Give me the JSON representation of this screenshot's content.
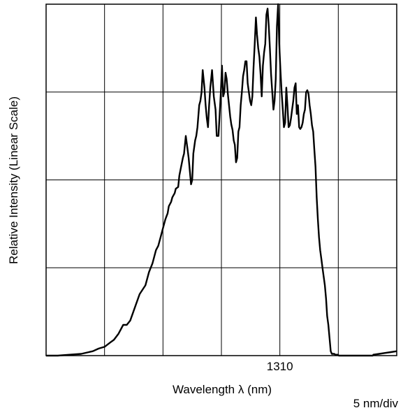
{
  "chart_data": {
    "type": "line",
    "xlabel": "Wavelength λ (nm)",
    "ylabel": "Relative Intensity (Linear Scale)",
    "x_tick_labels": [
      {
        "x": 1310,
        "label": "1310"
      }
    ],
    "scale_annotation": "5 nm/div",
    "x_unit": "nm",
    "xlim": [
      1290,
      1320
    ],
    "ylim": [
      0,
      4
    ],
    "grid": true,
    "x_divisions": 6,
    "y_divisions": 4,
    "series": [
      {
        "color": "#000000",
        "x": [
          1290.0,
          1291.0,
          1292.0,
          1293.0,
          1294.0,
          1294.5,
          1295.0,
          1295.5,
          1295.8,
          1296.2,
          1296.6,
          1296.9,
          1297.2,
          1297.6,
          1298.0,
          1298.5,
          1298.8,
          1299.1,
          1299.4,
          1299.6,
          1299.8,
          1300.0,
          1300.1,
          1300.2,
          1300.4,
          1300.5,
          1300.7,
          1300.8,
          1301.0,
          1301.1,
          1301.3,
          1301.4,
          1301.55,
          1301.7,
          1301.8,
          1301.95,
          1302.1,
          1302.2,
          1302.3,
          1302.4,
          1302.5,
          1302.6,
          1302.75,
          1302.85,
          1302.95,
          1303.1,
          1303.2,
          1303.3,
          1303.4,
          1303.55,
          1303.65,
          1303.75,
          1303.85,
          1303.95,
          1304.05,
          1304.2,
          1304.35,
          1304.5,
          1304.6,
          1304.75,
          1304.85,
          1304.95,
          1305.05,
          1305.15,
          1305.25,
          1305.35,
          1305.45,
          1305.55,
          1305.65,
          1305.75,
          1305.85,
          1305.95,
          1306.05,
          1306.15,
          1306.25,
          1306.35,
          1306.45,
          1306.55,
          1306.65,
          1306.75,
          1306.85,
          1306.95,
          1307.05,
          1307.15,
          1307.25,
          1307.35,
          1307.45,
          1307.55,
          1307.65,
          1307.75,
          1307.85,
          1307.95,
          1308.05,
          1308.15,
          1308.25,
          1308.35,
          1308.45,
          1308.55,
          1308.65,
          1308.75,
          1308.85,
          1308.95,
          1309.05,
          1309.15,
          1309.25,
          1309.35,
          1309.45,
          1309.55,
          1309.65,
          1309.75,
          1309.85,
          1309.95,
          1310.05,
          1310.15,
          1310.25,
          1310.35,
          1310.45,
          1310.55,
          1310.65,
          1310.75,
          1310.85,
          1310.95,
          1311.05,
          1311.15,
          1311.25,
          1311.35,
          1311.45,
          1311.55,
          1311.65,
          1311.75,
          1311.85,
          1311.95,
          1312.05,
          1312.15,
          1312.25,
          1312.35,
          1312.45,
          1312.55,
          1312.65,
          1312.75,
          1312.85,
          1312.95,
          1313.05,
          1313.15,
          1313.25,
          1313.35,
          1313.45,
          1313.55,
          1313.65,
          1313.75,
          1313.85,
          1313.95,
          1314.05,
          1314.15,
          1314.25,
          1314.35,
          1314.45,
          1314.55,
          1314.65,
          1314.75,
          1314.85,
          1314.95,
          1315.05,
          1315.15,
          1315.25,
          1315.35,
          1315.45,
          1315.55,
          1315.65,
          1315.75,
          1315.85,
          1315.95,
          1316.05,
          1316.15,
          1316.25,
          1316.35,
          1316.45,
          1316.55,
          1316.65,
          1316.75,
          1316.85,
          1316.95,
          1317.05,
          1317.15,
          1317.25,
          1317.35,
          1317.45,
          1317.55,
          1317.65,
          1317.75,
          1317.85,
          1317.95,
          1318.0,
          1318.5,
          1319.0,
          1319.5,
          1320.0
        ],
        "y": [
          0.0,
          0.0,
          0.01,
          0.02,
          0.05,
          0.08,
          0.1,
          0.15,
          0.18,
          0.25,
          0.35,
          0.35,
          0.4,
          0.55,
          0.7,
          0.8,
          0.95,
          1.05,
          1.2,
          1.25,
          1.35,
          1.45,
          1.5,
          1.55,
          1.62,
          1.7,
          1.75,
          1.8,
          1.85,
          1.9,
          1.92,
          2.05,
          2.15,
          2.25,
          2.3,
          2.5,
          2.35,
          2.25,
          2.1,
          1.95,
          2.0,
          2.3,
          2.45,
          2.5,
          2.6,
          2.85,
          2.9,
          3.0,
          3.25,
          3.05,
          2.85,
          2.7,
          2.6,
          2.85,
          3.05,
          3.25,
          2.95,
          2.8,
          2.5,
          2.5,
          2.75,
          3.0,
          3.3,
          2.95,
          3.0,
          3.22,
          3.15,
          2.98,
          2.85,
          2.72,
          2.63,
          2.57,
          2.45,
          2.4,
          2.2,
          2.25,
          2.55,
          2.6,
          2.85,
          3.0,
          3.18,
          3.25,
          3.35,
          3.35,
          3.1,
          3.0,
          2.9,
          2.85,
          2.95,
          3.28,
          3.55,
          3.85,
          3.65,
          3.5,
          3.4,
          3.2,
          2.95,
          3.3,
          3.45,
          3.55,
          3.88,
          3.95,
          3.75,
          3.5,
          3.2,
          3.0,
          2.8,
          2.9,
          3.15,
          3.75,
          4.0,
          3.55,
          3.25,
          3.0,
          2.8,
          2.6,
          2.65,
          3.05,
          2.85,
          2.6,
          2.62,
          2.7,
          2.8,
          2.9,
          3.05,
          3.1,
          2.75,
          2.85,
          2.6,
          2.58,
          2.6,
          2.65,
          2.75,
          2.8,
          3.0,
          3.02,
          2.98,
          2.85,
          2.75,
          2.62,
          2.55,
          2.35,
          2.15,
          1.8,
          1.55,
          1.35,
          1.2,
          1.1,
          1.0,
          0.9,
          0.8,
          0.65,
          0.45,
          0.35,
          0.2,
          0.05,
          0.02,
          0.02,
          0.02,
          0.01,
          0.01,
          0.01,
          0.0,
          0.0,
          0.0,
          0.0,
          0.0,
          0.0,
          0.0,
          0.0,
          0.0,
          0.0,
          0.0,
          0.0,
          0.0,
          0.0,
          0.0,
          0.0,
          0.0,
          0.0,
          0.0,
          0.0,
          0.0,
          0.0,
          0.0,
          0.0,
          0.0,
          0.0,
          0.0,
          0.0,
          0.0,
          0.0,
          0.01,
          0.02,
          0.03,
          0.04,
          0.05
        ]
      }
    ]
  }
}
